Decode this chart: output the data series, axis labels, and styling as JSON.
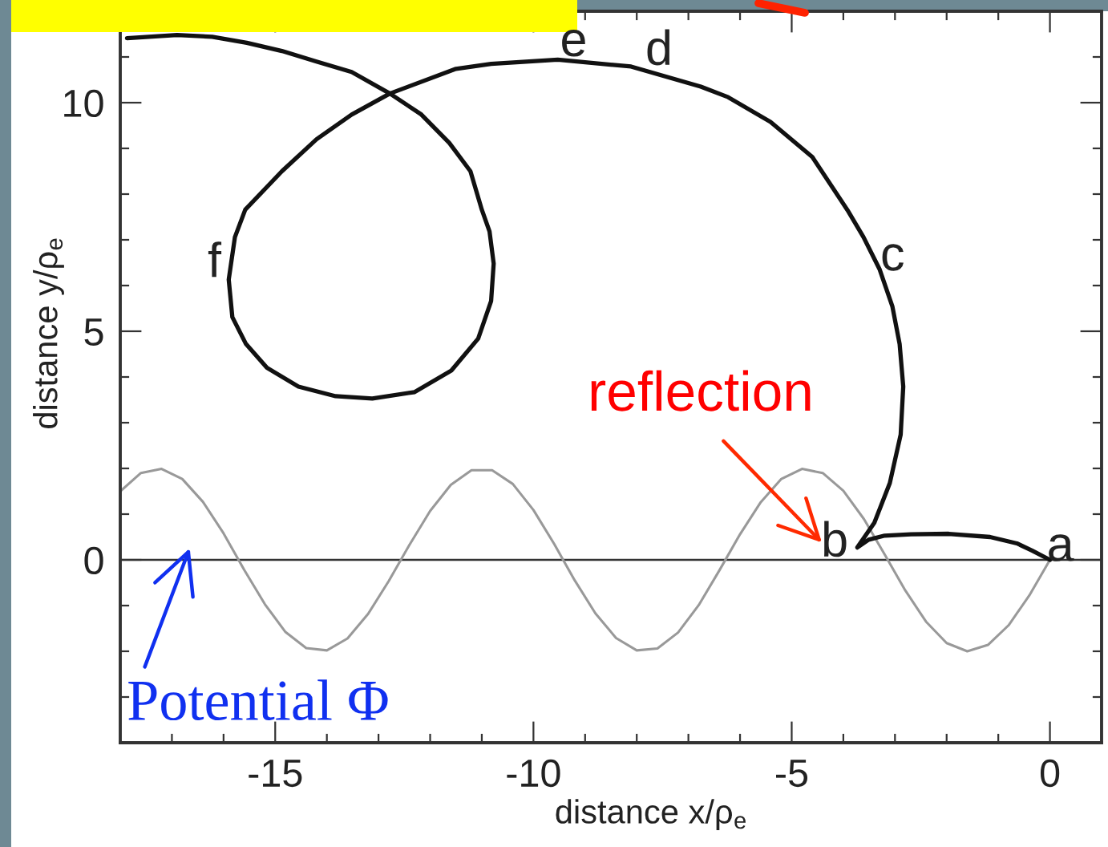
{
  "chart_data": {
    "type": "line",
    "xlabel": "distance x/ρ$_{e}$",
    "ylabel": "distance y/ρ$_{e}$",
    "xlim": [
      -18,
      1
    ],
    "ylim": [
      -4,
      12
    ],
    "xticks": [
      {
        "value": -17,
        "label": null
      },
      {
        "value": -16,
        "label": null
      },
      -15,
      {
        "value": -14,
        "label": null
      },
      {
        "value": -13,
        "label": null
      },
      {
        "value": -12,
        "label": null
      },
      {
        "value": -11,
        "label": null
      },
      -10,
      {
        "value": -9,
        "label": null
      },
      {
        "value": -8,
        "label": null
      },
      {
        "value": -7,
        "label": null
      },
      {
        "value": -6,
        "label": null
      },
      -5,
      {
        "value": -4,
        "label": null
      },
      {
        "value": -3,
        "label": null
      },
      {
        "value": -2,
        "label": null
      },
      {
        "value": -1,
        "label": null
      },
      0
    ],
    "yticks": [
      {
        "value": -3,
        "label": null
      },
      {
        "value": -2,
        "label": null
      },
      {
        "value": -1,
        "label": null
      },
      0,
      {
        "value": 1,
        "label": null
      },
      {
        "value": 2,
        "label": null
      },
      {
        "value": 3,
        "label": null
      },
      {
        "value": 4,
        "label": null
      },
      5,
      {
        "value": 6,
        "label": null
      },
      {
        "value": 7,
        "label": null
      },
      {
        "value": 8,
        "label": null
      },
      {
        "value": 9,
        "label": null
      },
      10,
      {
        "value": 11,
        "label": null
      }
    ],
    "series": [
      {
        "color": "#999999",
        "x": [
          -18,
          -17.6,
          -17.2,
          -16.8,
          -16.4,
          -16,
          -15.6,
          -15.2,
          -14.8,
          -14.4,
          -14,
          -13.6,
          -13.2,
          -12.8,
          -12.4,
          -12,
          -11.6,
          -11.2,
          -10.8,
          -10.4,
          -10,
          -9.6,
          -9.2,
          -8.8,
          -8.4,
          -8,
          -7.6,
          -7.2,
          -6.8,
          -6.4,
          -6,
          -5.6,
          -5.2,
          -4.8,
          -4.4,
          -4,
          -3.6,
          -3.2,
          -2.8,
          -2.4,
          -2,
          -1.6,
          -1.2,
          -0.8,
          -0.4,
          0
        ],
        "values": [
          1.5,
          1.9,
          1.99,
          1.77,
          1.27,
          0.58,
          -0.22,
          -0.97,
          -1.58,
          -1.93,
          -1.98,
          -1.72,
          -1.18,
          -0.46,
          0.33,
          1.07,
          1.64,
          1.96,
          1.96,
          1.66,
          1.09,
          0.35,
          -0.45,
          -1.17,
          -1.71,
          -1.98,
          -1.94,
          -1.59,
          -0.99,
          -0.23,
          0.56,
          1.26,
          1.77,
          1.99,
          1.9,
          1.51,
          0.89,
          0.12,
          -0.67,
          -1.35,
          -1.82,
          -2.0,
          -1.86,
          -1.43,
          -0.78,
          0
        ]
      },
      {
        "color": "#111111",
        "x": [
          0,
          -0.34,
          -0.64,
          -1.16,
          -1.96,
          -2.69,
          -3.2,
          -3.51,
          -3.73,
          -3.4,
          -3.1,
          -2.89,
          -2.84,
          -2.91,
          -3.05,
          -3.3,
          -3.61,
          -3.92,
          -4.6,
          -5.41,
          -6.23,
          -6.76,
          -8.11,
          -9.53,
          -10.82,
          -11.5,
          -12.78,
          -13.52,
          -14.2,
          -14.87,
          -15.58,
          -15.78,
          -15.9,
          -15.83,
          -15.57,
          -15.16,
          -14.55,
          -13.83,
          -13.12,
          -12.3,
          -11.59,
          -11.07,
          -10.82,
          -10.77,
          -10.85,
          -11.0,
          -11.22,
          -11.63,
          -12.17,
          -12.78,
          -13.52,
          -14.2,
          -14.87,
          -15.55,
          -16.22,
          -16.9,
          -17.87
        ],
        "values": [
          0,
          0.2,
          0.36,
          0.5,
          0.57,
          0.56,
          0.53,
          0.44,
          0.27,
          0.81,
          1.68,
          2.74,
          3.79,
          4.72,
          5.54,
          6.36,
          7.06,
          7.65,
          8.81,
          9.58,
          10.12,
          10.35,
          10.79,
          10.94,
          10.85,
          10.74,
          10.2,
          9.74,
          9.2,
          8.5,
          7.66,
          7.06,
          6.13,
          5.31,
          4.73,
          4.2,
          3.79,
          3.58,
          3.53,
          3.67,
          4.14,
          4.84,
          5.66,
          6.48,
          7.18,
          7.66,
          8.5,
          9.12,
          9.74,
          10.2,
          10.67,
          10.9,
          11.13,
          11.31,
          11.44,
          11.48,
          11.41
        ]
      }
    ],
    "ref_lines": [
      {
        "axis": "y",
        "value": 0,
        "color": "#333333"
      }
    ],
    "annotations": [
      "a",
      "b",
      "c",
      "d",
      "e",
      "f",
      "reflection",
      "Potential Φ"
    ]
  }
}
